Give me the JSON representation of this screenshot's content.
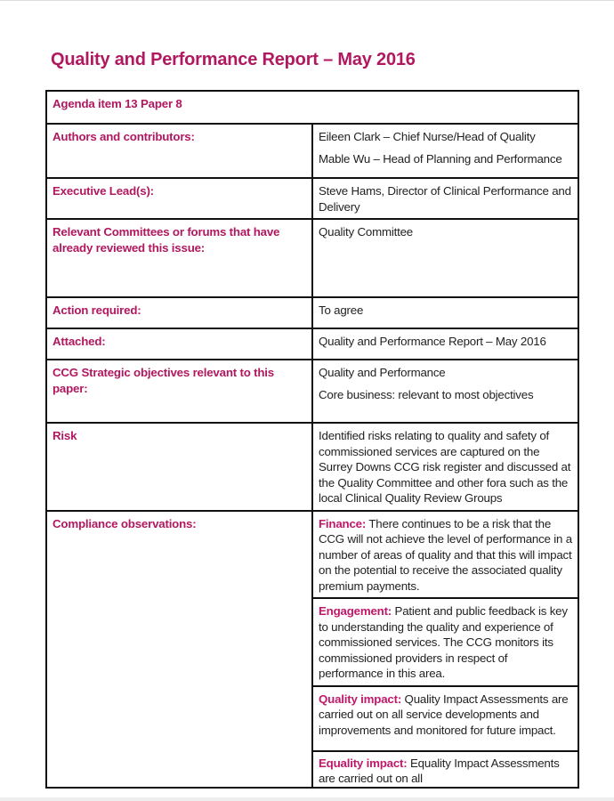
{
  "title": "Quality and Performance Report – May 2016",
  "agenda": "Agenda item 13 Paper 8",
  "rows": [
    {
      "label": "Authors and contributors:",
      "values": [
        "Eileen Clark – Chief Nurse/Head of Quality",
        "Mable Wu – Head of Planning and Performance"
      ]
    },
    {
      "label": "Executive Lead(s):",
      "values": [
        "Steve Hams, Director of Clinical Performance and Delivery"
      ]
    },
    {
      "label": "Relevant Committees or forums that have already reviewed this issue:",
      "values": [
        "Quality Committee"
      ]
    },
    {
      "label": "Action required:",
      "values": [
        "To agree"
      ]
    },
    {
      "label": "Attached:",
      "values": [
        "Quality and Performance Report – May 2016"
      ]
    },
    {
      "label": "CCG Strategic objectives relevant to this paper:",
      "values": [
        "Quality and Performance",
        "Core business: relevant to most objectives"
      ]
    },
    {
      "label": "Risk",
      "values": [
        "Identified risks relating to quality and safety of commissioned services are captured on the Surrey Downs CCG risk register and discussed at the Quality Committee and other fora such as the local Clinical Quality Review Groups"
      ]
    }
  ],
  "compliance": {
    "label": "Compliance observations:",
    "items": [
      {
        "heading": "Finance:",
        "text": " There continues to be a risk that the CCG will not achieve the level of performance in a number of areas of quality and that this will impact on the potential to receive the associated quality premium payments."
      },
      {
        "heading": "Engagement:",
        "text": " Patient and public feedback is key to understanding the quality and experience of commissioned services. The CCG monitors its commissioned providers in respect of performance in this area."
      },
      {
        "heading": "Quality impact:",
        "text": " Quality Impact Assessments are carried out on all service developments and improvements and monitored for future impact."
      },
      {
        "heading": "Equality impact:",
        "text": " Equality Impact Assessments are carried out on all"
      }
    ]
  },
  "colors": {
    "accent": "#b0185f",
    "border": "#111111"
  }
}
